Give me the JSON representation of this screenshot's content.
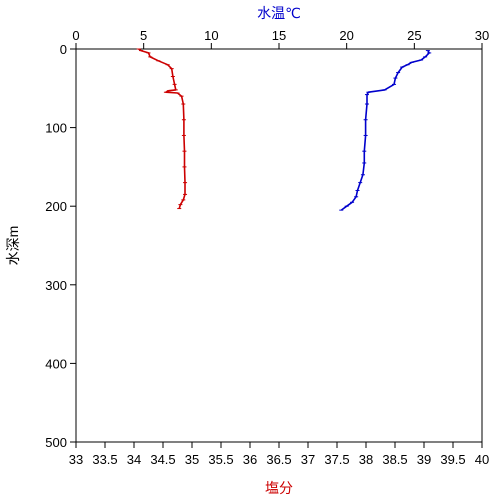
{
  "chart_data": {
    "type": "line",
    "title": "",
    "y_axis": {
      "label": "水深m",
      "range": [
        0,
        500
      ],
      "reversed": true,
      "ticks": [
        0,
        100,
        200,
        300,
        400,
        500
      ]
    },
    "top_axis": {
      "label": "水温℃",
      "label_color": "#0000cc",
      "range": [
        0,
        30
      ],
      "ticks": [
        0,
        5,
        10,
        15,
        20,
        25,
        30
      ]
    },
    "bottom_axis": {
      "label": "塩分",
      "label_color": "#cc0000",
      "range": [
        33,
        40
      ],
      "ticks": [
        "33",
        "33.5",
        "34",
        "34.5",
        "35",
        "35.5",
        "36",
        "36.5",
        "37",
        "37.5",
        "38",
        "38.5",
        "39",
        "39.5",
        "40"
      ]
    },
    "grid": false,
    "legend": "none",
    "series": [
      {
        "axis": "top",
        "color": "#0000cc",
        "points": [
          [
            26.0,
            2
          ],
          [
            26.1,
            5
          ],
          [
            25.8,
            10
          ],
          [
            25.5,
            14
          ],
          [
            24.8,
            17
          ],
          [
            24.5,
            20
          ],
          [
            24.1,
            23
          ],
          [
            23.8,
            30
          ],
          [
            23.6,
            37
          ],
          [
            23.5,
            45
          ],
          [
            22.8,
            52
          ],
          [
            21.6,
            55
          ],
          [
            21.5,
            58
          ],
          [
            21.5,
            70
          ],
          [
            21.4,
            90
          ],
          [
            21.4,
            110
          ],
          [
            21.3,
            130
          ],
          [
            21.3,
            145
          ],
          [
            21.2,
            160
          ],
          [
            21.0,
            170
          ],
          [
            20.8,
            180
          ],
          [
            20.7,
            188
          ],
          [
            20.4,
            195
          ],
          [
            20.0,
            200
          ],
          [
            19.6,
            205
          ]
        ]
      },
      {
        "axis": "bottom",
        "color": "#cc0000",
        "points": [
          [
            34.08,
            0
          ],
          [
            34.12,
            2
          ],
          [
            34.25,
            5
          ],
          [
            34.28,
            10
          ],
          [
            34.42,
            15
          ],
          [
            34.58,
            20
          ],
          [
            34.65,
            25
          ],
          [
            34.67,
            35
          ],
          [
            34.7,
            45
          ],
          [
            34.72,
            52
          ],
          [
            34.6,
            53
          ],
          [
            34.55,
            55
          ],
          [
            34.75,
            56
          ],
          [
            34.82,
            60
          ],
          [
            34.85,
            70
          ],
          [
            34.86,
            90
          ],
          [
            34.86,
            110
          ],
          [
            34.87,
            130
          ],
          [
            34.87,
            150
          ],
          [
            34.88,
            170
          ],
          [
            34.88,
            185
          ],
          [
            34.85,
            192
          ],
          [
            34.8,
            198
          ],
          [
            34.78,
            203
          ]
        ]
      }
    ]
  }
}
